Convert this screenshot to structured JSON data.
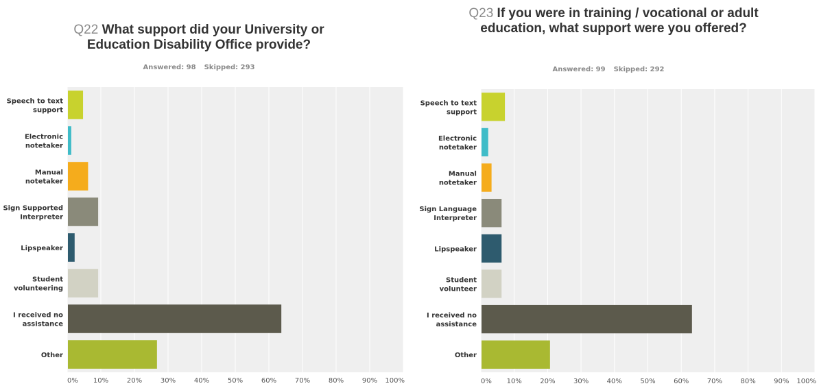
{
  "chart_data": [
    {
      "type": "bar",
      "orientation": "horizontal",
      "question_number": "Q22",
      "title": "What support did your University or Education Disability Office provide?",
      "answered_label": "Answered: 98",
      "skipped_label": "Skipped: 293",
      "categories": [
        [
          "Speech to text",
          "support"
        ],
        [
          "Electronic",
          "notetaker"
        ],
        [
          "Manual",
          "notetaker"
        ],
        [
          "Sign Supported",
          "Interpreter"
        ],
        [
          "Lipspeaker"
        ],
        [
          "Student",
          "volunteering"
        ],
        [
          "I received no",
          "assistance"
        ],
        [
          "Other"
        ]
      ],
      "values": [
        4.5,
        1,
        6,
        9,
        2,
        9,
        63.5,
        26.5
      ],
      "colors": [
        "#c8d22e",
        "#3fbcc8",
        "#f5ac1c",
        "#8a8a7a",
        "#2e5b6e",
        "#d2d2c4",
        "#5c5a4c",
        "#a9b932"
      ],
      "xlim": [
        0,
        100
      ],
      "xticks": [
        "0%",
        "10%",
        "20%",
        "30%",
        "40%",
        "50%",
        "60%",
        "70%",
        "80%",
        "90%",
        "100%"
      ],
      "grid": true,
      "background": "#efefef"
    },
    {
      "type": "bar",
      "orientation": "horizontal",
      "question_number": "Q23",
      "title": "If you were in training / vocational or adult education, what support were you offered?",
      "answered_label": "Answered: 99",
      "skipped_label": "Skipped: 292",
      "categories": [
        [
          "Speech to text",
          "support"
        ],
        [
          "Electronic",
          "notetaker"
        ],
        [
          "Manual",
          "notetaker"
        ],
        [
          "Sign Language",
          "Interpreter"
        ],
        [
          "Lipspeaker"
        ],
        [
          "Student",
          "volunteer"
        ],
        [
          "I received no",
          "assistance"
        ],
        [
          "Other"
        ]
      ],
      "values": [
        7,
        2,
        3,
        6,
        6,
        6,
        63,
        20.5
      ],
      "colors": [
        "#c8d22e",
        "#3fbcc8",
        "#f5ac1c",
        "#8a8a7a",
        "#2e5b6e",
        "#d2d2c4",
        "#5c5a4c",
        "#a9b932"
      ],
      "xlim": [
        0,
        100
      ],
      "xticks": [
        "0%",
        "10%",
        "20%",
        "30%",
        "40%",
        "50%",
        "60%",
        "70%",
        "80%",
        "90%",
        "100%"
      ],
      "grid": true,
      "background": "#efefef"
    }
  ]
}
